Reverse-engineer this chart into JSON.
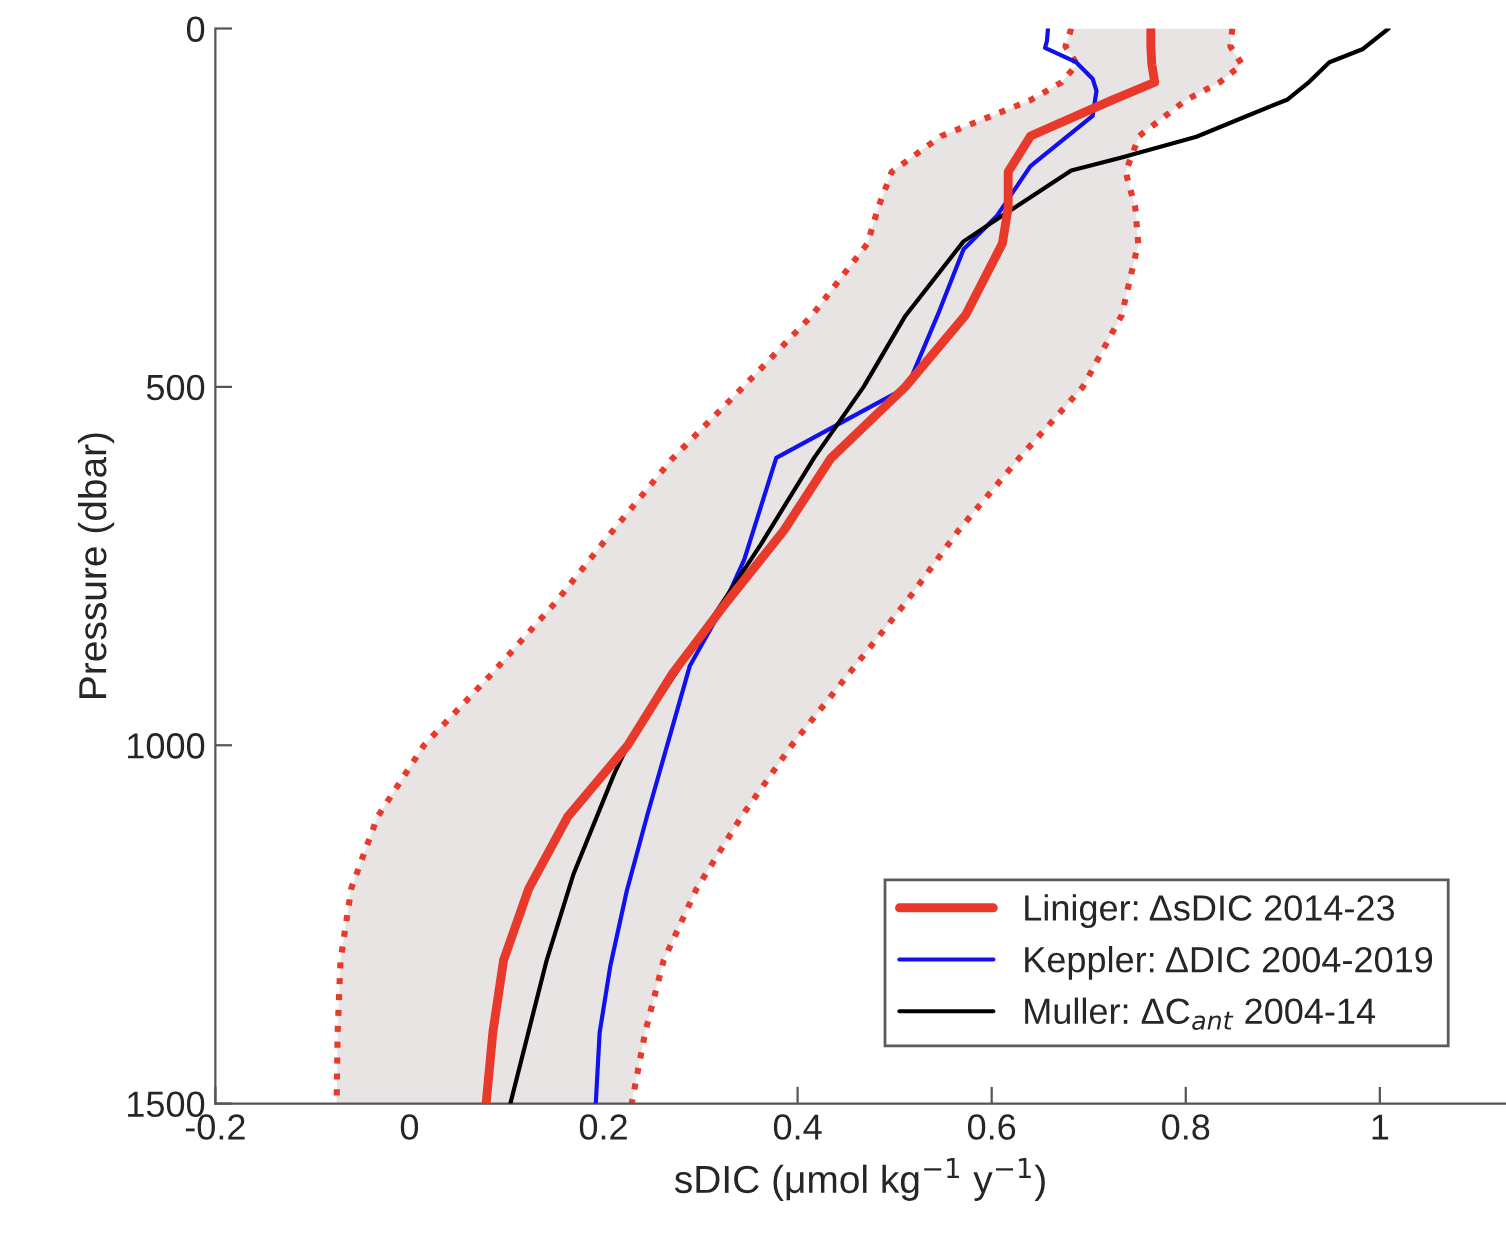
{
  "chart_data": {
    "type": "line",
    "orientation": "horizontal",
    "xlabel": "sDIC (μmol kg$^{−1}$ y$^{−1}$)",
    "ylabel": "Pressure (dbar)",
    "xlim": [
      -0.2,
      1.13
    ],
    "xticks": [
      -0.2,
      0,
      0.2,
      0.4,
      0.6,
      0.8,
      1
    ],
    "ylim": [
      1500,
      0
    ],
    "yticks": [
      0,
      500,
      1000,
      1500
    ],
    "grid": false,
    "legend": "bottom right",
    "series": [
      {
        "name": "Liniger: ΔsDIC 2014-23",
        "color": "#e8392b",
        "x": [
          0,
          25,
          50,
          75,
          100,
          150,
          200,
          250,
          300,
          400,
          500,
          600,
          700,
          800,
          900,
          1000,
          1100,
          1200,
          1300,
          1400,
          1500
        ],
        "values": [
          0.764,
          0.764,
          0.765,
          0.768,
          0.724,
          0.64,
          0.617,
          0.617,
          0.611,
          0.573,
          0.511,
          0.434,
          0.386,
          0.327,
          0.271,
          0.225,
          0.163,
          0.123,
          0.097,
          0.086,
          0.079
        ],
        "lower": [
          0.682,
          0.676,
          0.688,
          0.672,
          0.64,
          0.548,
          0.497,
          0.483,
          0.472,
          0.415,
          0.344,
          0.271,
          0.21,
          0.151,
          0.085,
          0.015,
          -0.033,
          -0.06,
          -0.071,
          -0.074,
          -0.075
        ],
        "upper": [
          0.848,
          0.846,
          0.858,
          0.835,
          0.8,
          0.752,
          0.738,
          0.748,
          0.751,
          0.734,
          0.694,
          0.628,
          0.566,
          0.512,
          0.453,
          0.394,
          0.342,
          0.296,
          0.262,
          0.243,
          0.229
        ]
      },
      {
        "color": "#e8392b",
        "line_style": "dotted",
        "x": [
          0,
          25,
          50,
          75,
          100,
          150,
          200,
          250,
          300,
          400,
          500,
          600,
          700,
          800,
          900,
          1000,
          1100,
          1200,
          1300,
          1400,
          1500
        ],
        "values": [
          0.682,
          0.676,
          0.688,
          0.672,
          0.64,
          0.548,
          0.497,
          0.483,
          0.472,
          0.415,
          0.344,
          0.271,
          0.21,
          0.151,
          0.085,
          0.015,
          -0.033,
          -0.06,
          -0.071,
          -0.074,
          -0.075
        ]
      },
      {
        "color": "#e8392b",
        "line_style": "dotted",
        "x": [
          0,
          25,
          50,
          75,
          100,
          150,
          200,
          250,
          300,
          400,
          500,
          600,
          700,
          800,
          900,
          1000,
          1100,
          1200,
          1300,
          1400,
          1500
        ],
        "values": [
          0.848,
          0.846,
          0.858,
          0.835,
          0.8,
          0.752,
          0.738,
          0.748,
          0.751,
          0.734,
          0.694,
          0.628,
          0.566,
          0.512,
          0.453,
          0.394,
          0.342,
          0.296,
          0.262,
          0.243,
          0.229
        ]
      },
      {
        "name": "Keppler: ΔDIC 2004-2019",
        "color": "#1010f0",
        "x": [
          0,
          17,
          27,
          47,
          70,
          87,
          122,
          192,
          262,
          308,
          401,
          500,
          599,
          741,
          807,
          889,
          1003,
          1098,
          1203,
          1308,
          1401,
          1500
        ],
        "values": [
          0.658,
          0.657,
          0.655,
          0.687,
          0.704,
          0.708,
          0.704,
          0.64,
          0.605,
          0.571,
          0.544,
          0.513,
          0.378,
          0.345,
          0.323,
          0.289,
          0.265,
          0.245,
          0.224,
          0.207,
          0.196,
          0.192
        ]
      },
      {
        "name": "Muller: ΔC$_{ant}$ 2004-14",
        "color": "#000000",
        "x": [
          0,
          29,
          47,
          76,
          99,
          122,
          151,
          180,
          198,
          262,
          297,
          401,
          500,
          599,
          720,
          1003,
          1040,
          1180,
          1302,
          1500
        ],
        "values": [
          1.009,
          0.982,
          0.948,
          0.926,
          0.905,
          0.863,
          0.811,
          0.734,
          0.682,
          0.61,
          0.571,
          0.511,
          0.468,
          0.417,
          0.362,
          0.224,
          0.211,
          0.169,
          0.141,
          0.104
        ]
      }
    ]
  }
}
